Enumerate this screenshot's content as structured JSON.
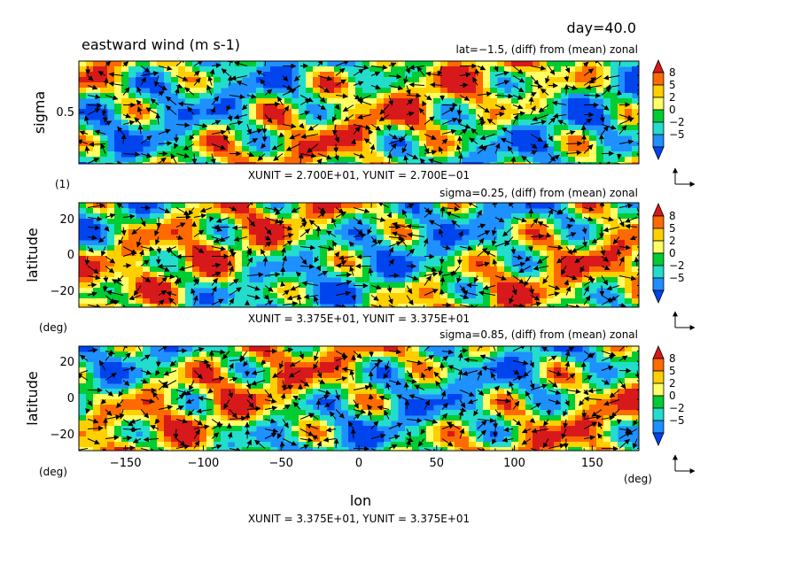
{
  "header": {
    "day": "day=40.0",
    "title": "eastward wind (m s-1)"
  },
  "colorbar": {
    "levels": [
      "8",
      "5",
      "2",
      "0",
      "−2",
      "−5"
    ],
    "colors": [
      "#d7191c",
      "#ff6a00",
      "#ffd000",
      "#ffff66",
      "#00cc33",
      "#22ddcc",
      "#1e90ff",
      "#0044ee"
    ]
  },
  "chart_data": [
    {
      "type": "heatmap",
      "subtitle": "lat=−1.5, (diff) from (mean) zonal",
      "ylabel": "sigma",
      "yunit_label": "(1)",
      "yticks": [
        "0.5"
      ],
      "unit_note": "XUNIT = 2.700E+01, YUNIT = 2.700E−01",
      "ylim": [
        1.0,
        0.0
      ],
      "xlim": [
        -180,
        180
      ]
    },
    {
      "type": "heatmap",
      "subtitle": "sigma=0.25, (diff) from (mean) zonal",
      "ylabel": "latitude",
      "yunit_label": "(deg)",
      "yticks": [
        "20",
        "0",
        "−20"
      ],
      "unit_note": "XUNIT = 3.375E+01, YUNIT = 3.375E+01",
      "ylim": [
        -30,
        30
      ],
      "xlim": [
        -180,
        180
      ]
    },
    {
      "type": "heatmap",
      "subtitle": "sigma=0.85, (diff) from (mean) zonal",
      "ylabel": "latitude",
      "yunit_label": "(deg)",
      "yticks": [
        "20",
        "0",
        "−20"
      ],
      "xticks": [
        "−150",
        "−100",
        "−50",
        "0",
        "50",
        "100",
        "150"
      ],
      "xtick_values": [
        -150,
        -100,
        -50,
        0,
        50,
        100,
        150
      ],
      "xlabel": "lon",
      "xunit_label": "(deg)",
      "unit_note": "XUNIT = 3.375E+01, YUNIT = 3.375E+01",
      "ylim": [
        -30,
        30
      ],
      "xlim": [
        -180,
        180
      ]
    }
  ]
}
